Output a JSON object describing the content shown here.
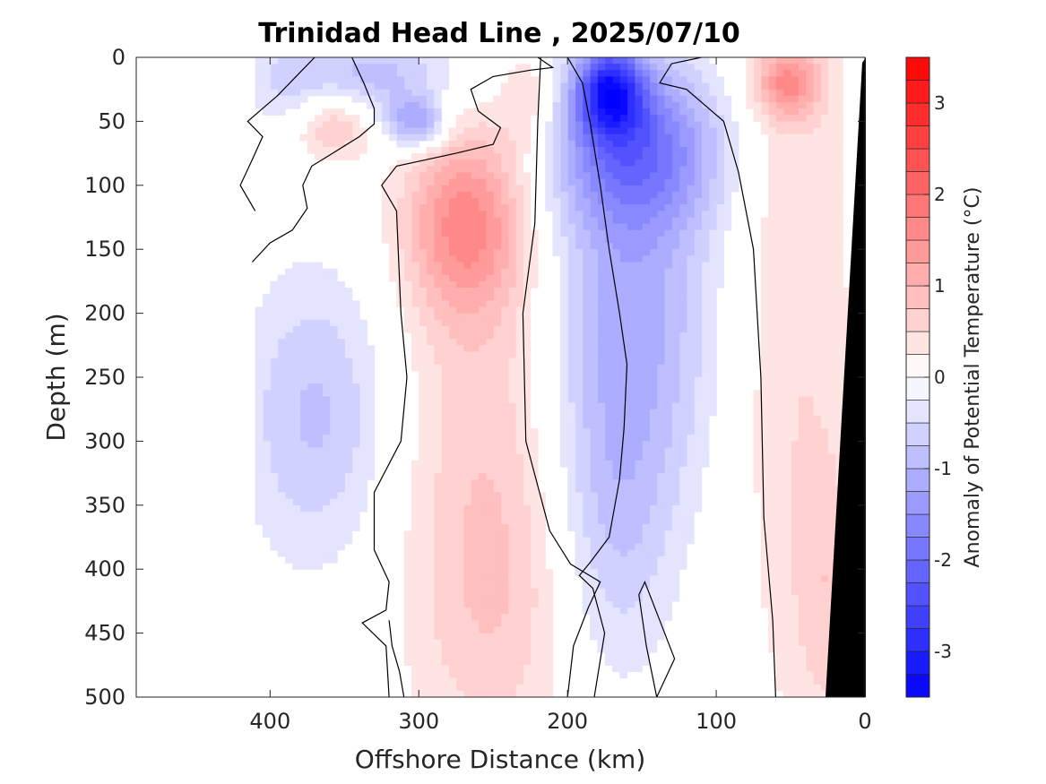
{
  "chart_data": {
    "type": "heatmap",
    "title": "Trinidad Head Line , 2025/07/10",
    "xlabel": "Offshore Distance (km)",
    "ylabel": "Depth (m)",
    "xlim": [
      490,
      0
    ],
    "ylim": [
      0,
      500
    ],
    "x_ticks": [
      "400",
      "300",
      "200",
      "100",
      "0"
    ],
    "y_ticks": [
      "0",
      "50",
      "100",
      "150",
      "200",
      "250",
      "300",
      "350",
      "400",
      "450",
      "500"
    ],
    "colorbar": {
      "label": "Anomaly of Potential Temperature (°C)",
      "range": [
        -3.5,
        3.5
      ],
      "step": 0.25,
      "ticks": [
        "3",
        "2",
        "1",
        "0",
        "-1",
        "-2",
        "-3"
      ],
      "negative_color": "#0000ff",
      "positive_color": "#ff0000"
    },
    "data_coverage_km": [
      0,
      410
    ],
    "anomaly_features": [
      {
        "x": 270,
        "y": 130,
        "value": 1.3,
        "sx": 28,
        "sy": 50
      },
      {
        "x": 255,
        "y": 260,
        "value": 0.6,
        "sx": 40,
        "sy": 170
      },
      {
        "x": 250,
        "y": 430,
        "value": 0.45,
        "sx": 40,
        "sy": 90
      },
      {
        "x": 357,
        "y": 52,
        "value": 0.9,
        "sx": 18,
        "sy": 20
      },
      {
        "x": 225,
        "y": 35,
        "value": 0.5,
        "sx": 14,
        "sy": 30
      },
      {
        "x": 52,
        "y": 20,
        "value": 1.3,
        "sx": 16,
        "sy": 20
      },
      {
        "x": 48,
        "y": 200,
        "value": 0.5,
        "sx": 30,
        "sy": 230
      },
      {
        "x": 25,
        "y": 420,
        "value": 0.5,
        "sx": 16,
        "sy": 80
      },
      {
        "x": 172,
        "y": 25,
        "value": -2.4,
        "sx": 16,
        "sy": 25
      },
      {
        "x": 155,
        "y": 70,
        "value": -1.6,
        "sx": 40,
        "sy": 45
      },
      {
        "x": 158,
        "y": 200,
        "value": -1.1,
        "sx": 40,
        "sy": 110
      },
      {
        "x": 170,
        "y": 370,
        "value": -0.6,
        "sx": 28,
        "sy": 90
      },
      {
        "x": 302,
        "y": 52,
        "value": -1.3,
        "sx": 14,
        "sy": 14
      },
      {
        "x": 330,
        "y": 15,
        "value": -0.9,
        "sx": 45,
        "sy": 25
      },
      {
        "x": 370,
        "y": 280,
        "value": -0.8,
        "sx": 35,
        "sy": 80
      },
      {
        "x": 390,
        "y": 20,
        "value": -0.3,
        "sx": 20,
        "sy": 25
      }
    ],
    "zero_contours": [
      [
        [
          412,
          160
        ],
        [
          400,
          145
        ],
        [
          385,
          135
        ],
        [
          375,
          118
        ],
        [
          378,
          100
        ],
        [
          372,
          85
        ],
        [
          358,
          75
        ],
        [
          340,
          62
        ],
        [
          330,
          52
        ],
        [
          330,
          40
        ],
        [
          337,
          20
        ],
        [
          345,
          0
        ]
      ],
      [
        [
          410,
          120
        ],
        [
          420,
          100
        ],
        [
          412,
          80
        ],
        [
          405,
          62
        ],
        [
          415,
          50
        ],
        [
          405,
          40
        ],
        [
          395,
          30
        ],
        [
          380,
          12
        ],
        [
          370,
          0
        ]
      ],
      [
        [
          320,
          500
        ],
        [
          322,
          460
        ],
        [
          338,
          442
        ],
        [
          322,
          432
        ],
        [
          320,
          410
        ],
        [
          330,
          385
        ],
        [
          330,
          340
        ],
        [
          312,
          300
        ],
        [
          308,
          250
        ],
        [
          312,
          200
        ],
        [
          315,
          120
        ],
        [
          325,
          100
        ],
        [
          315,
          85
        ],
        [
          275,
          75
        ],
        [
          250,
          68
        ],
        [
          245,
          55
        ],
        [
          260,
          42
        ],
        [
          265,
          25
        ],
        [
          250,
          15
        ],
        [
          225,
          10
        ],
        [
          210,
          8
        ],
        [
          220,
          0
        ]
      ],
      [
        [
          200,
          500
        ],
        [
          196,
          460
        ],
        [
          186,
          430
        ],
        [
          178,
          410
        ],
        [
          198,
          396
        ],
        [
          212,
          370
        ],
        [
          228,
          300
        ],
        [
          230,
          200
        ],
        [
          222,
          130
        ],
        [
          220,
          50
        ],
        [
          218,
          0
        ]
      ],
      [
        [
          182,
          500
        ],
        [
          175,
          450
        ],
        [
          183,
          415
        ],
        [
          192,
          405
        ],
        [
          185,
          395
        ],
        [
          172,
          375
        ],
        [
          165,
          330
        ],
        [
          162,
          290
        ],
        [
          160,
          240
        ],
        [
          165,
          200
        ],
        [
          172,
          150
        ],
        [
          178,
          100
        ],
        [
          185,
          50
        ],
        [
          190,
          20
        ],
        [
          200,
          0
        ]
      ],
      [
        [
          140,
          500
        ],
        [
          147,
          460
        ],
        [
          152,
          420
        ],
        [
          148,
          410
        ],
        [
          138,
          440
        ],
        [
          128,
          470
        ],
        [
          140,
          500
        ]
      ],
      [
        [
          60,
          500
        ],
        [
          62,
          440
        ],
        [
          68,
          360
        ],
        [
          70,
          250
        ],
        [
          75,
          150
        ],
        [
          85,
          90
        ],
        [
          95,
          50
        ],
        [
          120,
          25
        ],
        [
          138,
          20
        ],
        [
          130,
          5
        ],
        [
          110,
          0
        ]
      ],
      [
        [
          310,
          500
        ],
        [
          313,
          480
        ],
        [
          318,
          460
        ],
        [
          320,
          440
        ]
      ]
    ]
  }
}
